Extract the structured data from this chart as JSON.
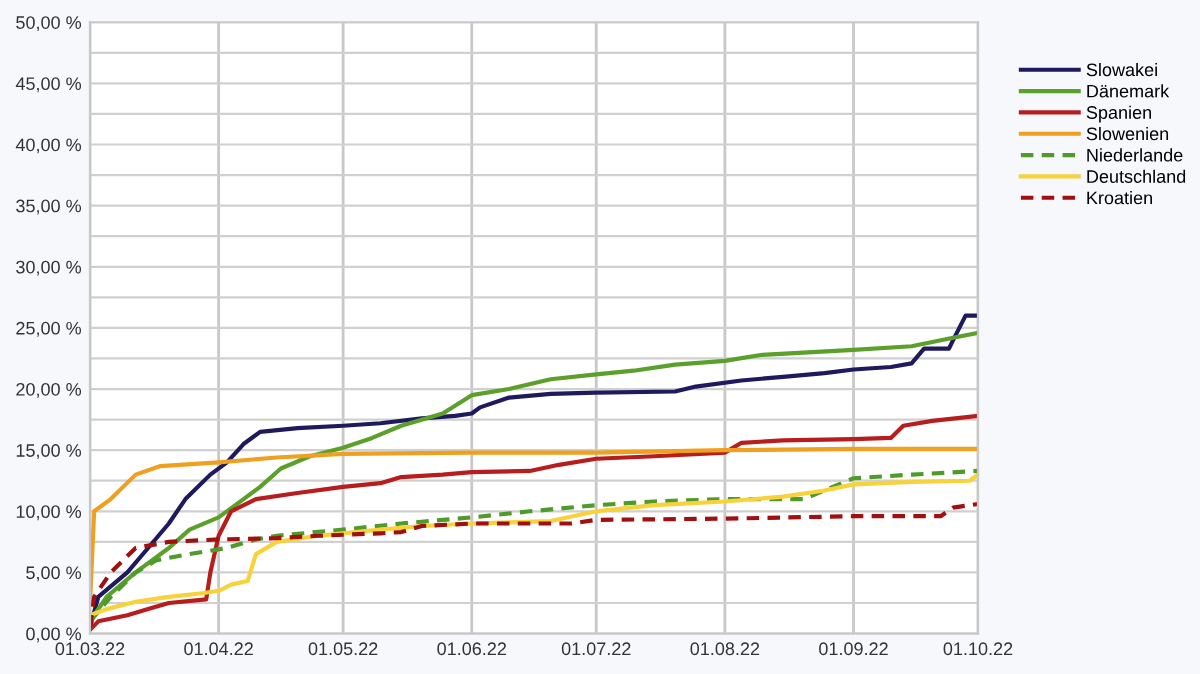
{
  "chart_data": {
    "type": "line",
    "legend": "right",
    "grid": true,
    "xlim": [
      "2022-03-01",
      "2022-10-01"
    ],
    "xticks": [
      {
        "value": "2022-03-01",
        "label": "01.03.22"
      },
      {
        "value": "2022-04-01",
        "label": "01.04.22"
      },
      {
        "value": "2022-05-01",
        "label": "01.05.22"
      },
      {
        "value": "2022-06-01",
        "label": "01.06.22"
      },
      {
        "value": "2022-07-01",
        "label": "01.07.22"
      },
      {
        "value": "2022-08-01",
        "label": "01.08.22"
      },
      {
        "value": "2022-09-01",
        "label": "01.09.22"
      },
      {
        "value": "2022-10-01",
        "label": "01.10.22"
      }
    ],
    "ylim": [
      0,
      50
    ],
    "yticks": [
      {
        "value": 0,
        "label": "0,00 %"
      },
      {
        "value": 2.5,
        "label": null
      },
      {
        "value": 5,
        "label": "5,00 %"
      },
      {
        "value": 7.5,
        "label": null
      },
      {
        "value": 10,
        "label": "10,00 %"
      },
      {
        "value": 12.5,
        "label": null
      },
      {
        "value": 15,
        "label": "15,00 %"
      },
      {
        "value": 17.5,
        "label": null
      },
      {
        "value": 20,
        "label": "20,00 %"
      },
      {
        "value": 22.5,
        "label": null
      },
      {
        "value": 25,
        "label": "25,00 %"
      },
      {
        "value": 27.5,
        "label": null
      },
      {
        "value": 30,
        "label": "30,00 %"
      },
      {
        "value": 32.5,
        "label": null
      },
      {
        "value": 35,
        "label": "35,00 %"
      },
      {
        "value": 37.5,
        "label": null
      },
      {
        "value": 40,
        "label": "40,00 %"
      },
      {
        "value": 42.5,
        "label": null
      },
      {
        "value": 45,
        "label": "45,00 %"
      },
      {
        "value": 47.5,
        "label": null
      },
      {
        "value": 50,
        "label": "50,00 %"
      }
    ],
    "series": [
      {
        "name": "Slowakei",
        "color": "#1f1a5e",
        "line_style": "solid",
        "x": [
          "2022-03-01",
          "2022-03-03",
          "2022-03-10",
          "2022-03-15",
          "2022-03-20",
          "2022-03-24",
          "2022-03-30",
          "2022-04-03",
          "2022-04-07",
          "2022-04-11",
          "2022-04-20",
          "2022-05-01",
          "2022-05-10",
          "2022-05-20",
          "2022-05-28",
          "2022-06-01",
          "2022-06-03",
          "2022-06-10",
          "2022-06-20",
          "2022-07-01",
          "2022-07-20",
          "2022-07-25",
          "2022-08-05",
          "2022-08-15",
          "2022-08-25",
          "2022-09-01",
          "2022-09-10",
          "2022-09-15",
          "2022-09-18",
          "2022-09-24",
          "2022-09-25",
          "2022-09-28",
          "2022-10-01"
        ],
        "values": [
          0.5,
          3,
          5,
          7,
          9,
          11,
          13,
          14,
          15.5,
          16.5,
          16.8,
          17,
          17.2,
          17.6,
          17.8,
          18,
          18.5,
          19.3,
          19.6,
          19.7,
          19.8,
          20.2,
          20.7,
          21,
          21.3,
          21.6,
          21.8,
          22.1,
          23.3,
          23.3,
          24,
          26,
          26
        ]
      },
      {
        "name": "Dänemark",
        "color": "#5ba02a",
        "line_style": "solid",
        "x": [
          "2022-03-01",
          "2022-03-05",
          "2022-03-12",
          "2022-03-20",
          "2022-03-25",
          "2022-04-01",
          "2022-04-07",
          "2022-04-11",
          "2022-04-16",
          "2022-04-23",
          "2022-05-01",
          "2022-05-08",
          "2022-05-15",
          "2022-05-25",
          "2022-06-01",
          "2022-06-10",
          "2022-06-20",
          "2022-07-01",
          "2022-07-10",
          "2022-07-20",
          "2022-08-01",
          "2022-08-10",
          "2022-09-01",
          "2022-09-15",
          "2022-09-25",
          "2022-10-01"
        ],
        "values": [
          1,
          3,
          5,
          7,
          8.5,
          9.5,
          11,
          12,
          13.5,
          14.5,
          15.2,
          16,
          17,
          18,
          19.5,
          20,
          20.8,
          21.2,
          21.5,
          22,
          22.3,
          22.8,
          23.2,
          23.5,
          24.2,
          24.6
        ]
      },
      {
        "name": "Spanien",
        "color": "#b81d1d",
        "line_style": "solid",
        "x": [
          "2022-03-01",
          "2022-03-03",
          "2022-03-10",
          "2022-03-15",
          "2022-03-20",
          "2022-03-29",
          "2022-03-30",
          "2022-04-01",
          "2022-04-04",
          "2022-04-10",
          "2022-04-20",
          "2022-05-01",
          "2022-05-10",
          "2022-05-15",
          "2022-05-25",
          "2022-06-01",
          "2022-06-15",
          "2022-06-22",
          "2022-07-01",
          "2022-07-15",
          "2022-08-01",
          "2022-08-05",
          "2022-08-15",
          "2022-09-01",
          "2022-09-10",
          "2022-09-13",
          "2022-09-20",
          "2022-10-01"
        ],
        "values": [
          0.3,
          1,
          1.5,
          2,
          2.5,
          2.8,
          5,
          8,
          10,
          11,
          11.5,
          12,
          12.3,
          12.8,
          13,
          13.2,
          13.3,
          13.8,
          14.3,
          14.5,
          14.8,
          15.6,
          15.8,
          15.9,
          16,
          17,
          17.4,
          17.8
        ]
      },
      {
        "name": "Slowenien",
        "color": "#f0a020",
        "line_style": "solid",
        "x": [
          "2022-03-01",
          "2022-03-02",
          "2022-03-06",
          "2022-03-12",
          "2022-03-18",
          "2022-04-01",
          "2022-04-15",
          "2022-05-01",
          "2022-06-01",
          "2022-07-01",
          "2022-08-01",
          "2022-09-01",
          "2022-10-01"
        ],
        "values": [
          2.5,
          10,
          11,
          13,
          13.7,
          14,
          14.4,
          14.7,
          14.8,
          14.8,
          15,
          15.1,
          15.1
        ]
      },
      {
        "name": "Niederlande",
        "color": "#4e9a2a",
        "line_style": "dashed",
        "x": [
          "2022-03-01",
          "2022-03-06",
          "2022-03-12",
          "2022-03-17",
          "2022-03-25",
          "2022-04-03",
          "2022-04-10",
          "2022-04-15",
          "2022-05-01",
          "2022-05-15",
          "2022-06-01",
          "2022-06-15",
          "2022-07-01",
          "2022-07-15",
          "2022-08-01",
          "2022-08-20",
          "2022-09-01",
          "2022-09-15",
          "2022-10-01"
        ],
        "values": [
          1,
          3,
          5,
          6,
          6.5,
          7,
          7.7,
          8,
          8.5,
          9,
          9.5,
          10,
          10.5,
          10.8,
          11,
          11,
          12.7,
          13,
          13.3
        ]
      },
      {
        "name": "Deutschland",
        "color": "#f7d23a",
        "line_style": "solid",
        "x": [
          "2022-03-01",
          "2022-03-05",
          "2022-03-12",
          "2022-03-20",
          "2022-03-28",
          "2022-04-01",
          "2022-04-04",
          "2022-04-08",
          "2022-04-10",
          "2022-04-15",
          "2022-04-25",
          "2022-05-10",
          "2022-05-20",
          "2022-06-01",
          "2022-06-20",
          "2022-07-01",
          "2022-07-15",
          "2022-08-01",
          "2022-08-15",
          "2022-08-25",
          "2022-09-01",
          "2022-09-15",
          "2022-09-29",
          "2022-10-01"
        ],
        "values": [
          1.5,
          2,
          2.6,
          3,
          3.3,
          3.5,
          4,
          4.3,
          6.5,
          7.5,
          8,
          8.5,
          8.8,
          9,
          9.2,
          10,
          10.5,
          10.8,
          11.2,
          11.7,
          12.2,
          12.4,
          12.5,
          13
        ]
      },
      {
        "name": "Kroatien",
        "color": "#a01010",
        "line_style": "dashed",
        "x": [
          "2022-03-01",
          "2022-03-02",
          "2022-03-06",
          "2022-03-12",
          "2022-03-20",
          "2022-04-01",
          "2022-04-15",
          "2022-04-25",
          "2022-05-10",
          "2022-05-15",
          "2022-05-20",
          "2022-06-01",
          "2022-06-25",
          "2022-07-01",
          "2022-08-01",
          "2022-09-01",
          "2022-09-22",
          "2022-09-25",
          "2022-10-01"
        ],
        "values": [
          0.5,
          3,
          5,
          7,
          7.5,
          7.7,
          7.8,
          8,
          8.2,
          8.3,
          8.8,
          9,
          9,
          9.3,
          9.4,
          9.6,
          9.6,
          10.3,
          10.6
        ]
      }
    ]
  }
}
